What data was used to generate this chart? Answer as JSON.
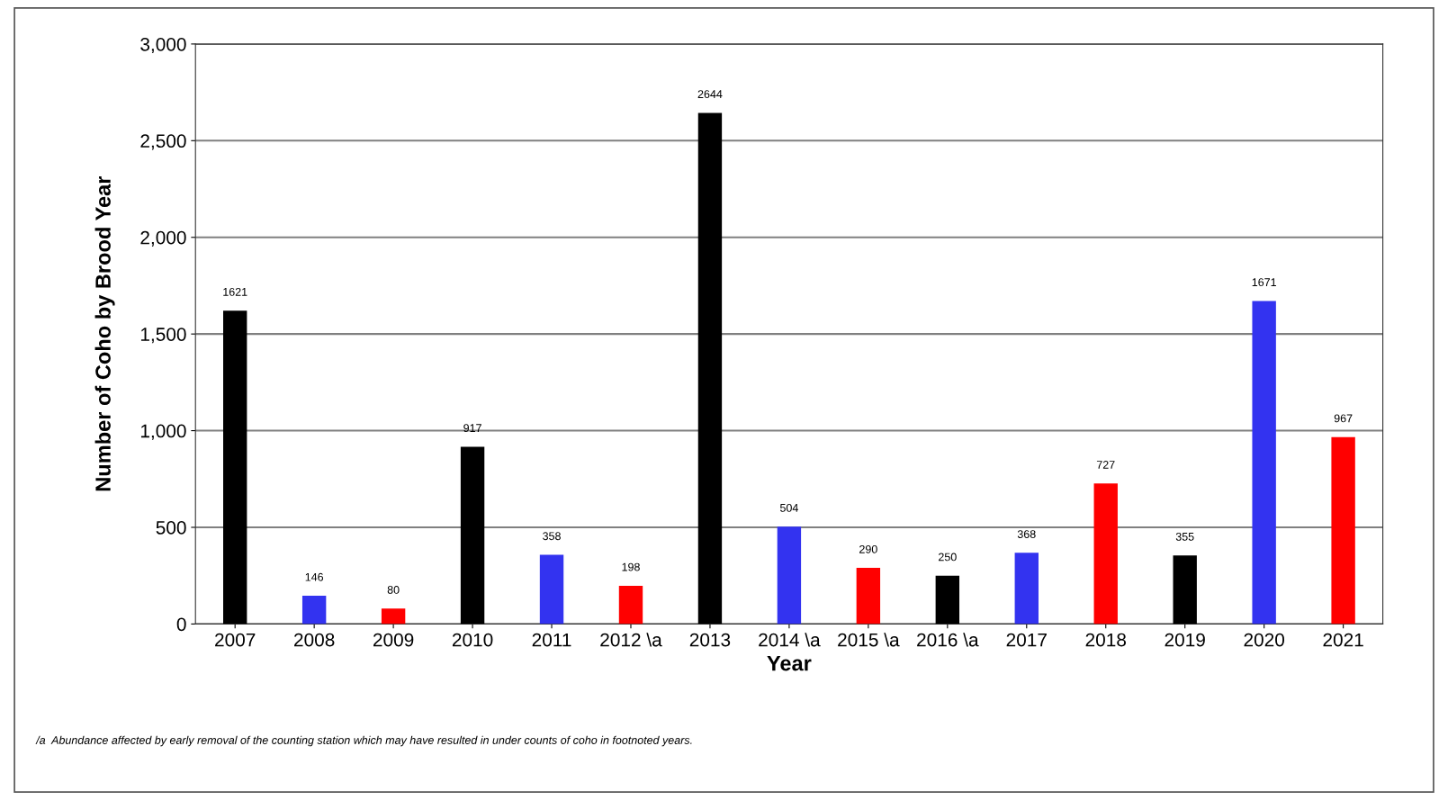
{
  "chart_data": {
    "type": "bar",
    "xlabel": "Year",
    "ylabel": "Number of Coho by Brood Year",
    "categories": [
      "2007",
      "2008",
      "2009",
      "2010",
      "2011",
      "2012 \\a",
      "2013",
      "2014 \\a",
      "2015 \\a",
      "2016 \\a",
      "2017",
      "2018",
      "2019",
      "2020",
      "2021"
    ],
    "values": [
      1621,
      146,
      80,
      917,
      358,
      198,
      2644,
      504,
      290,
      250,
      368,
      727,
      355,
      1671,
      967
    ],
    "colors": [
      "#000000",
      "#3333f0",
      "#ff0000",
      "#000000",
      "#3333f0",
      "#ff0000",
      "#000000",
      "#3333f0",
      "#ff0000",
      "#000000",
      "#3333f0",
      "#ff0000",
      "#000000",
      "#3333f0",
      "#ff0000"
    ],
    "data_labels": true,
    "ylim": [
      0,
      3000
    ],
    "yticks": [
      0,
      {
        "value": 500,
        "label": "500"
      },
      {
        "value": 1000,
        "label": "1,000"
      },
      {
        "value": 1500,
        "label": "1,500"
      },
      {
        "value": 2000,
        "label": "2,000"
      },
      {
        "value": 2500,
        "label": "2,500"
      },
      {
        "value": 3000,
        "label": "3,000"
      }
    ],
    "grid": "y",
    "annotations": [
      "/a  Abundance affected by early removal of the counting station which may have resulted in under counts of coho in footnoted years."
    ]
  }
}
